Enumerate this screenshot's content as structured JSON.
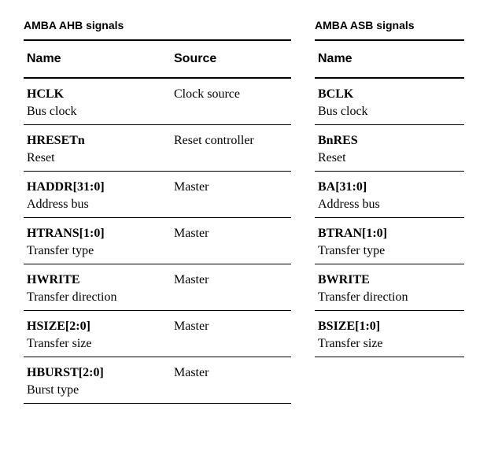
{
  "ahb": {
    "title": "AMBA AHB signals",
    "columns": [
      "Name",
      "Source"
    ],
    "rows": [
      {
        "name": "HCLK",
        "desc": "Bus clock",
        "source": "Clock source"
      },
      {
        "name": "HRESETn",
        "desc": "Reset",
        "source": "Reset controller"
      },
      {
        "name": "HADDR[31:0]",
        "desc": "Address bus",
        "source": "Master"
      },
      {
        "name": "HTRANS[1:0]",
        "desc": "Transfer type",
        "source": "Master"
      },
      {
        "name": "HWRITE",
        "desc": "Transfer direction",
        "source": "Master"
      },
      {
        "name": "HSIZE[2:0]",
        "desc": "Transfer size",
        "source": "Master"
      },
      {
        "name": "HBURST[2:0]",
        "desc": "Burst type",
        "source": "Master"
      }
    ]
  },
  "asb": {
    "title": "AMBA ASB signals",
    "columns": [
      "Name"
    ],
    "rows": [
      {
        "name": "BCLK",
        "desc": "Bus clock"
      },
      {
        "name": "BnRES",
        "desc": "Reset"
      },
      {
        "name": "BA[31:0]",
        "desc": "Address bus"
      },
      {
        "name": "BTRAN[1:0]",
        "desc": "Transfer type"
      },
      {
        "name": "BWRITE",
        "desc": "Transfer direction"
      },
      {
        "name": "BSIZE[1:0]",
        "desc": "Transfer size"
      }
    ]
  }
}
